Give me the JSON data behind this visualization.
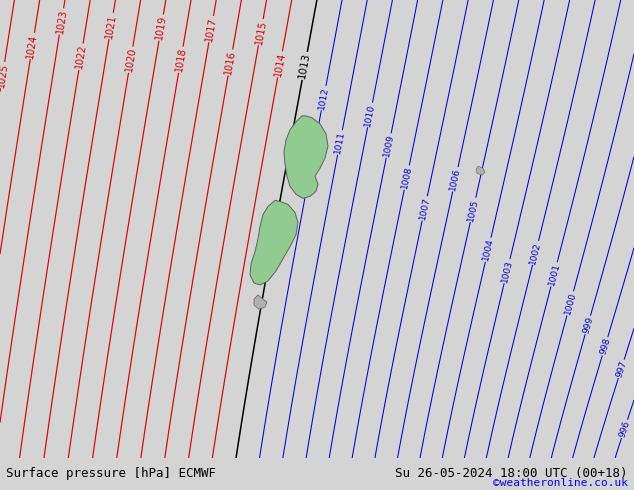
{
  "title_left": "Surface pressure [hPa] ECMWF",
  "title_right": "Su 26-05-2024 18:00 UTC (00+18)",
  "credit": "©weatheronline.co.uk",
  "bg_color": "#d4d4d4",
  "map_bg": "#d4d4d4",
  "figsize": [
    6.34,
    4.9
  ],
  "dpi": 100,
  "bottom_bar_color": "#bebebe",
  "isobar_blue_color": "#0000dd",
  "isobar_red_color": "#dd0000",
  "isobar_black_color": "#000000",
  "nz_ni_color": "#90cc90",
  "nz_si_color": "#90cc90",
  "nz_edge_color": "#606060"
}
